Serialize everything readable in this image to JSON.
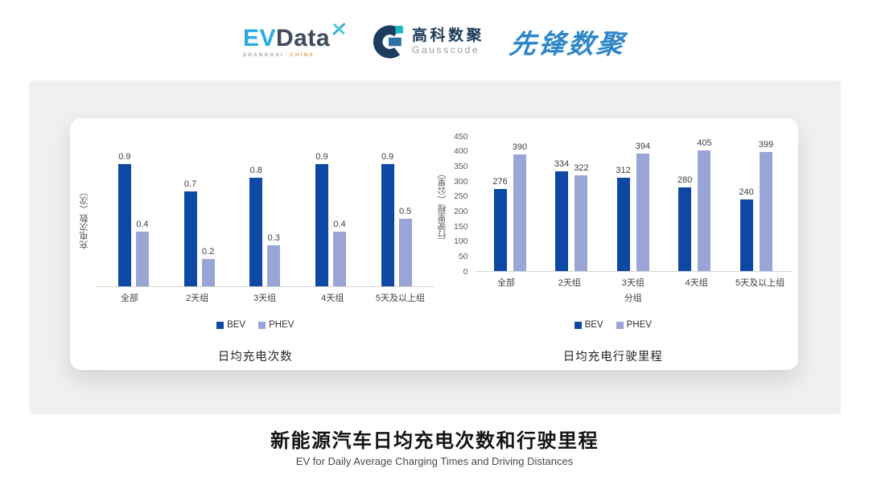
{
  "header": {
    "evdata": {
      "ev": "EV",
      "data": "Data",
      "mark_icon": "x-leaf-icon",
      "sub_left": "SHANGHAI",
      "sub_right": "CHINA"
    },
    "gausscode": {
      "icon": "g-circle-icon",
      "cn": "高科数聚",
      "en": "Gausscode"
    },
    "pioneer": {
      "text": "先锋数聚"
    }
  },
  "colors": {
    "bev": "#0D48A4",
    "phev": "#99A5D6",
    "panel_gray": "#F0F0F1",
    "evdata_blue": "#29ABE2",
    "evdata_dark": "#3D4B5C",
    "gauss_navy": "#1D3B58",
    "pioneer_blue": "#2E86C9",
    "china_orange": "#E89A4A",
    "axis_line": "#D6D6D6"
  },
  "chart_data": [
    {
      "type": "bar",
      "title": "日均充电次数",
      "ylabel": "充电次数（次）",
      "xlabel": "",
      "categories": [
        "全部",
        "2天组",
        "3天组",
        "4天组",
        "5天及以上组"
      ],
      "series": [
        {
          "name": "BEV",
          "color": "#0D48A4",
          "values": [
            0.9,
            0.7,
            0.8,
            0.9,
            0.9
          ]
        },
        {
          "name": "PHEV",
          "color": "#99A5D6",
          "values": [
            0.4,
            0.2,
            0.3,
            0.4,
            0.5
          ]
        }
      ],
      "ylim": [
        0,
        1.0
      ],
      "yticks": [],
      "grid": false,
      "legend_position": "bottom"
    },
    {
      "type": "bar",
      "title": "日均充电行驶里程",
      "ylabel": "行驶里程（公里）",
      "xlabel": "分组",
      "categories": [
        "全部",
        "2天组",
        "3天组",
        "4天组",
        "5天及以上组"
      ],
      "series": [
        {
          "name": "BEV",
          "color": "#0D48A4",
          "values": [
            276,
            334,
            312,
            280,
            240
          ]
        },
        {
          "name": "PHEV",
          "color": "#99A5D6",
          "values": [
            390,
            322,
            394,
            405,
            399
          ]
        }
      ],
      "ylim": [
        0,
        450
      ],
      "yticks": [
        0,
        50,
        100,
        150,
        200,
        250,
        300,
        350,
        400,
        450
      ],
      "grid": false,
      "legend_position": "bottom"
    }
  ],
  "footer": {
    "title": "新能源汽车日均充电次数和行驶里程",
    "subtitle": "EV for Daily Average Charging Times and Driving Distances"
  }
}
